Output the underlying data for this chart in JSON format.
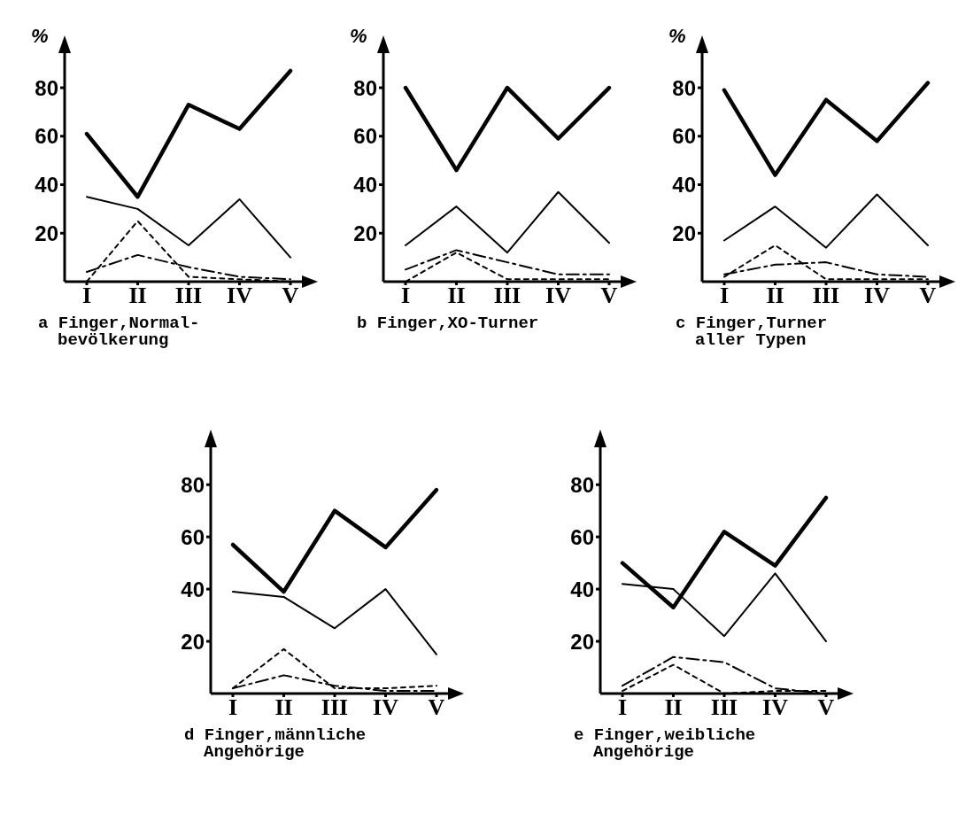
{
  "chart_data": [
    {
      "type": "line",
      "title": "a Finger,Normal-\nbevölkerung",
      "ylabel": "%",
      "categories": [
        "I",
        "II",
        "III",
        "IV",
        "V"
      ],
      "ylim": [
        0,
        95
      ],
      "yticks": [
        20,
        40,
        60,
        80
      ],
      "grid": false,
      "legend": false,
      "marker": "none",
      "series": [
        {
          "color": "#000000",
          "line_style": "solid",
          "values": [
            61,
            35,
            73,
            63,
            87
          ]
        },
        {
          "color": "#000000",
          "line_style": "solid",
          "values": [
            35,
            30,
            15,
            34,
            10
          ]
        },
        {
          "color": "#000000",
          "line_style": "dotted",
          "values": [
            0,
            25,
            2,
            1,
            0
          ]
        },
        {
          "color": "#000000",
          "line_style": "dashed",
          "values": [
            4,
            11,
            6,
            2,
            1
          ]
        }
      ]
    },
    {
      "type": "line",
      "title": "b Finger,XO-Turner",
      "ylabel": "%",
      "categories": [
        "I",
        "II",
        "III",
        "IV",
        "V"
      ],
      "ylim": [
        0,
        95
      ],
      "yticks": [
        20,
        40,
        60,
        80
      ],
      "grid": false,
      "legend": false,
      "marker": "none",
      "series": [
        {
          "color": "#000000",
          "line_style": "solid",
          "values": [
            80,
            46,
            80,
            59,
            80
          ]
        },
        {
          "color": "#000000",
          "line_style": "solid",
          "values": [
            15,
            31,
            12,
            37,
            16
          ]
        },
        {
          "color": "#000000",
          "line_style": "dotted",
          "values": [
            0,
            12,
            1,
            1,
            1
          ]
        },
        {
          "color": "#000000",
          "line_style": "dashed",
          "values": [
            5,
            13,
            8,
            3,
            3
          ]
        }
      ]
    },
    {
      "type": "line",
      "title": "c Finger,Turner\naller Typen",
      "ylabel": "%",
      "categories": [
        "I",
        "II",
        "III",
        "IV",
        "V"
      ],
      "ylim": [
        0,
        95
      ],
      "yticks": [
        20,
        40,
        60,
        80
      ],
      "grid": false,
      "legend": false,
      "marker": "none",
      "series": [
        {
          "color": "#000000",
          "line_style": "solid",
          "values": [
            79,
            44,
            75,
            58,
            82
          ]
        },
        {
          "color": "#000000",
          "line_style": "solid",
          "values": [
            17,
            31,
            14,
            36,
            15
          ]
        },
        {
          "color": "#000000",
          "line_style": "dotted",
          "values": [
            2,
            15,
            1,
            1,
            1
          ]
        },
        {
          "color": "#000000",
          "line_style": "dashed",
          "values": [
            3,
            7,
            8,
            3,
            2
          ]
        }
      ]
    },
    {
      "type": "line",
      "title": "d Finger,männliche\nAngehörige",
      "categories": [
        "I",
        "II",
        "III",
        "IV",
        "V"
      ],
      "ylim": [
        0,
        95
      ],
      "yticks": [
        20,
        40,
        60,
        80
      ],
      "grid": false,
      "legend": false,
      "marker": "none",
      "series": [
        {
          "color": "#000000",
          "line_style": "solid",
          "values": [
            57,
            39,
            70,
            56,
            78
          ]
        },
        {
          "color": "#000000",
          "line_style": "solid",
          "values": [
            39,
            37,
            25,
            40,
            15
          ]
        },
        {
          "color": "#000000",
          "line_style": "dotted",
          "values": [
            2,
            17,
            2,
            2,
            3
          ]
        },
        {
          "color": "#000000",
          "line_style": "dashed",
          "values": [
            2,
            7,
            3,
            1,
            1
          ]
        }
      ]
    },
    {
      "type": "line",
      "title": "e Finger,weibliche\nAngehörige",
      "categories": [
        "I",
        "II",
        "III",
        "IV",
        "V"
      ],
      "ylim": [
        0,
        95
      ],
      "yticks": [
        20,
        40,
        60,
        80
      ],
      "grid": false,
      "legend": false,
      "marker": "none",
      "series": [
        {
          "color": "#000000",
          "line_style": "solid",
          "values": [
            50,
            33,
            62,
            49,
            75
          ]
        },
        {
          "color": "#000000",
          "line_style": "solid",
          "values": [
            42,
            40,
            22,
            46,
            20
          ]
        },
        {
          "color": "#000000",
          "line_style": "dotted",
          "values": [
            1,
            11,
            0,
            1,
            1
          ]
        },
        {
          "color": "#000000",
          "line_style": "dashed",
          "values": [
            3,
            14,
            12,
            2,
            0
          ]
        }
      ]
    }
  ]
}
